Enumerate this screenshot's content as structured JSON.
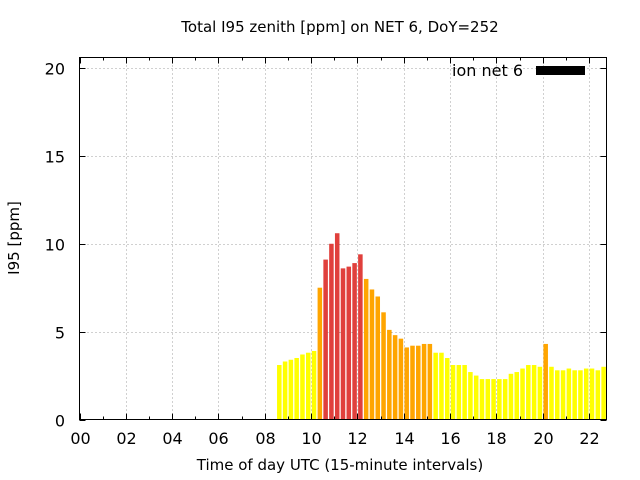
{
  "chart_data": {
    "type": "bar",
    "title": "Total I95 zenith [ppm] on NET 6, DoY=252",
    "xlabel": "Time of day UTC (15-minute intervals)",
    "ylabel": "I95 [ppm]",
    "xlim": [
      0,
      22.75
    ],
    "ylim": [
      0,
      20.6
    ],
    "x_ticks": [
      "00",
      "02",
      "04",
      "06",
      "08",
      "10",
      "12",
      "14",
      "16",
      "18",
      "20",
      "22"
    ],
    "y_ticks": [
      "0",
      "5",
      "10",
      "15",
      "20"
    ],
    "grid": true,
    "legend": {
      "label": "ion net 6",
      "position": "top-right",
      "color": "#000000"
    },
    "level_colors": {
      "low": "#ffff00",
      "medium": "#ffa500",
      "high": "#e0403c"
    },
    "series": [
      {
        "interval_hours": 0.25,
        "bars": [
          {
            "t": 8.5,
            "v": 3.1,
            "level": "low"
          },
          {
            "t": 8.75,
            "v": 3.3,
            "level": "low"
          },
          {
            "t": 9.0,
            "v": 3.4,
            "level": "low"
          },
          {
            "t": 9.25,
            "v": 3.5,
            "level": "low"
          },
          {
            "t": 9.5,
            "v": 3.7,
            "level": "low"
          },
          {
            "t": 9.75,
            "v": 3.8,
            "level": "low"
          },
          {
            "t": 10.0,
            "v": 3.9,
            "level": "low"
          },
          {
            "t": 10.25,
            "v": 7.5,
            "level": "medium"
          },
          {
            "t": 10.5,
            "v": 9.1,
            "level": "high"
          },
          {
            "t": 10.75,
            "v": 10.0,
            "level": "high"
          },
          {
            "t": 11.0,
            "v": 10.6,
            "level": "high"
          },
          {
            "t": 11.25,
            "v": 8.6,
            "level": "high"
          },
          {
            "t": 11.5,
            "v": 8.7,
            "level": "high"
          },
          {
            "t": 11.75,
            "v": 8.9,
            "level": "high"
          },
          {
            "t": 12.0,
            "v": 9.4,
            "level": "high"
          },
          {
            "t": 12.25,
            "v": 8.0,
            "level": "medium"
          },
          {
            "t": 12.5,
            "v": 7.4,
            "level": "medium"
          },
          {
            "t": 12.75,
            "v": 7.0,
            "level": "medium"
          },
          {
            "t": 13.0,
            "v": 6.1,
            "level": "medium"
          },
          {
            "t": 13.25,
            "v": 5.1,
            "level": "medium"
          },
          {
            "t": 13.5,
            "v": 4.8,
            "level": "medium"
          },
          {
            "t": 13.75,
            "v": 4.6,
            "level": "medium"
          },
          {
            "t": 14.0,
            "v": 4.1,
            "level": "medium"
          },
          {
            "t": 14.25,
            "v": 4.2,
            "level": "medium"
          },
          {
            "t": 14.5,
            "v": 4.2,
            "level": "medium"
          },
          {
            "t": 14.75,
            "v": 4.3,
            "level": "medium"
          },
          {
            "t": 15.0,
            "v": 4.3,
            "level": "medium"
          },
          {
            "t": 15.25,
            "v": 3.8,
            "level": "low"
          },
          {
            "t": 15.5,
            "v": 3.8,
            "level": "low"
          },
          {
            "t": 15.75,
            "v": 3.5,
            "level": "low"
          },
          {
            "t": 16.0,
            "v": 3.1,
            "level": "low"
          },
          {
            "t": 16.25,
            "v": 3.1,
            "level": "low"
          },
          {
            "t": 16.5,
            "v": 3.1,
            "level": "low"
          },
          {
            "t": 16.75,
            "v": 2.7,
            "level": "low"
          },
          {
            "t": 17.0,
            "v": 2.5,
            "level": "low"
          },
          {
            "t": 17.25,
            "v": 2.3,
            "level": "low"
          },
          {
            "t": 17.5,
            "v": 2.3,
            "level": "low"
          },
          {
            "t": 17.75,
            "v": 2.3,
            "level": "low"
          },
          {
            "t": 18.0,
            "v": 2.3,
            "level": "low"
          },
          {
            "t": 18.25,
            "v": 2.3,
            "level": "low"
          },
          {
            "t": 18.5,
            "v": 2.6,
            "level": "low"
          },
          {
            "t": 18.75,
            "v": 2.7,
            "level": "low"
          },
          {
            "t": 19.0,
            "v": 2.9,
            "level": "low"
          },
          {
            "t": 19.25,
            "v": 3.1,
            "level": "low"
          },
          {
            "t": 19.5,
            "v": 3.1,
            "level": "low"
          },
          {
            "t": 19.75,
            "v": 3.0,
            "level": "low"
          },
          {
            "t": 20.0,
            "v": 4.3,
            "level": "medium"
          },
          {
            "t": 20.25,
            "v": 3.0,
            "level": "low"
          },
          {
            "t": 20.5,
            "v": 2.8,
            "level": "low"
          },
          {
            "t": 20.75,
            "v": 2.8,
            "level": "low"
          },
          {
            "t": 21.0,
            "v": 2.9,
            "level": "low"
          },
          {
            "t": 21.25,
            "v": 2.8,
            "level": "low"
          },
          {
            "t": 21.5,
            "v": 2.8,
            "level": "low"
          },
          {
            "t": 21.75,
            "v": 2.9,
            "level": "low"
          },
          {
            "t": 22.0,
            "v": 2.9,
            "level": "low"
          },
          {
            "t": 22.25,
            "v": 2.8,
            "level": "low"
          },
          {
            "t": 22.5,
            "v": 3.0,
            "level": "low"
          }
        ]
      }
    ]
  }
}
